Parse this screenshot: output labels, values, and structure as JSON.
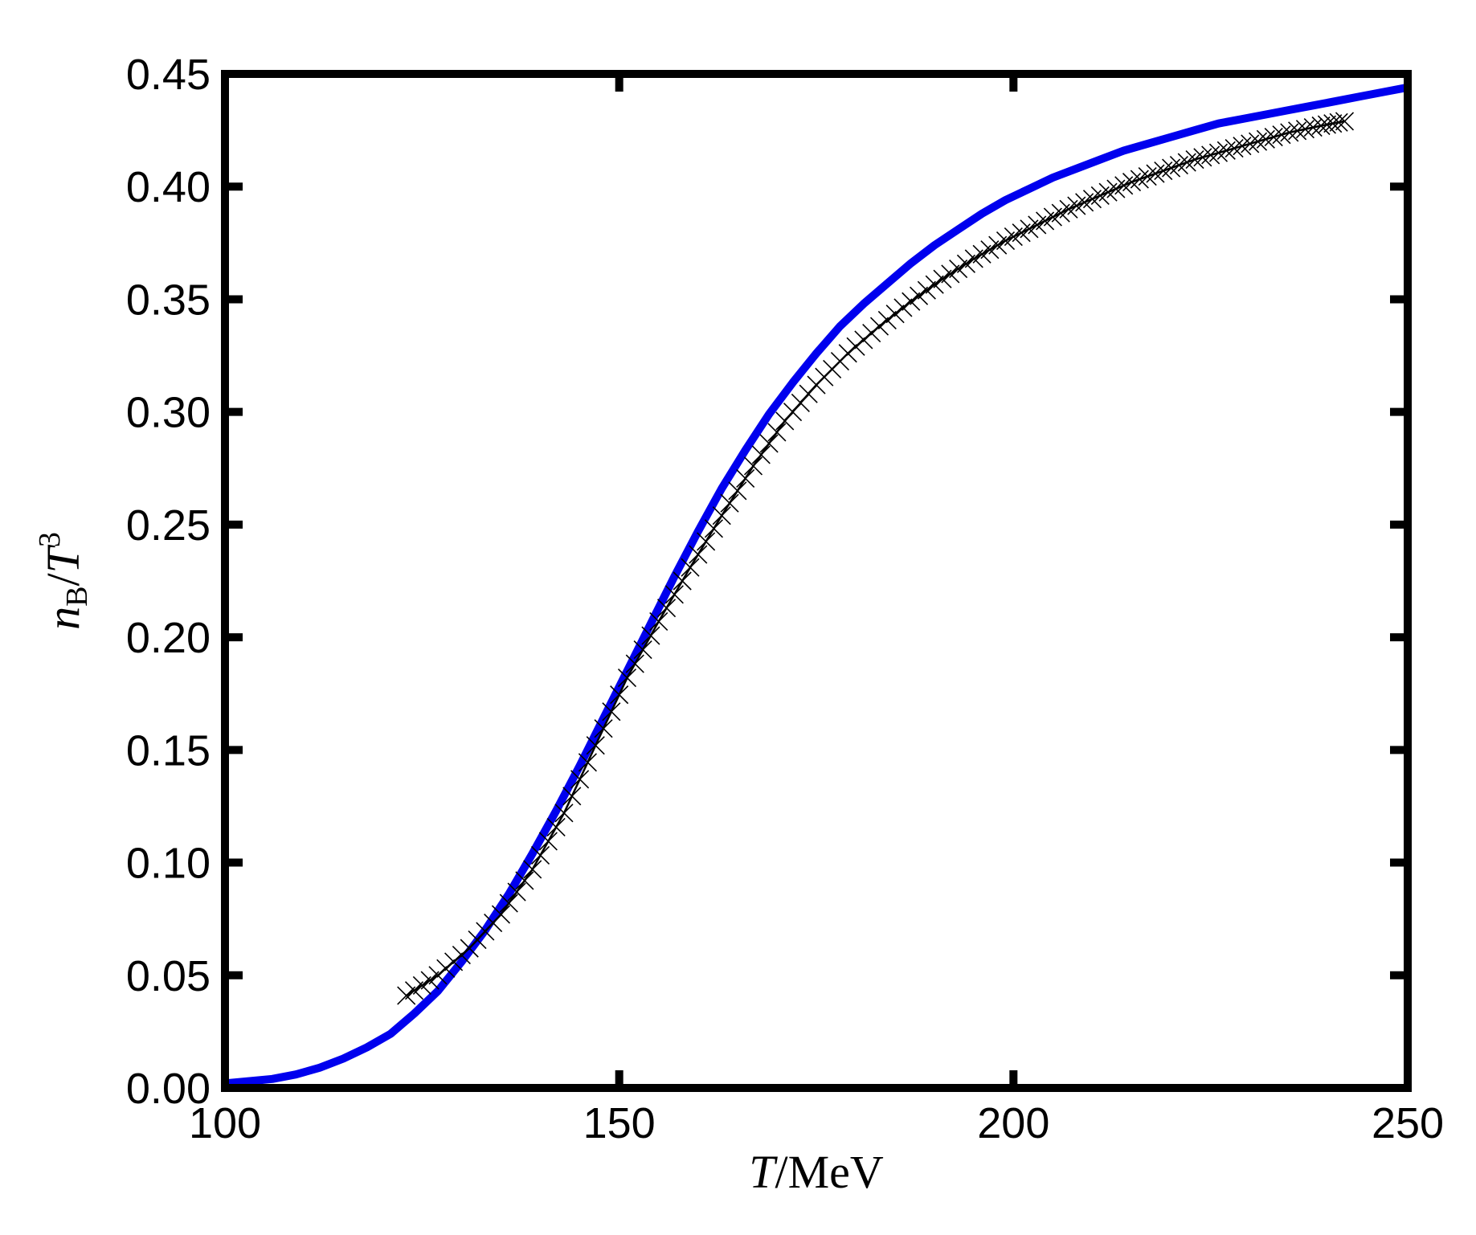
{
  "chart_data": {
    "type": "line",
    "title": "",
    "xlabel": "T/MeV",
    "ylabel": "n_B/T^3",
    "xlabel_parts": {
      "var": "T",
      "rest": "/MeV"
    },
    "ylabel_parts": {
      "var": "n",
      "sub": "B",
      "slash": "/",
      "var2": "T",
      "sup": "3"
    },
    "xlim": [
      100,
      250
    ],
    "ylim": [
      0,
      0.45
    ],
    "xticks": [
      100,
      150,
      200,
      250
    ],
    "xtick_labels": [
      "100",
      "150",
      "200",
      "250"
    ],
    "yticks": [
      0,
      0.05,
      0.1,
      0.15,
      0.2,
      0.25,
      0.3,
      0.35,
      0.4,
      0.45
    ],
    "ytick_labels": [
      "0.00",
      "0.05",
      "0.10",
      "0.15",
      "0.20",
      "0.25",
      "0.30",
      "0.35",
      "0.40",
      "0.45"
    ],
    "grid": false,
    "series": [
      {
        "color": "#0000ee",
        "style": "solid",
        "x": [
          100,
          103,
          106,
          109,
          112,
          115,
          118,
          121,
          124,
          127,
          130,
          133,
          136,
          139,
          142,
          145,
          148,
          151,
          154,
          157,
          160,
          163,
          166,
          169,
          172,
          175,
          178,
          181,
          184,
          187,
          190,
          193,
          196,
          199,
          202,
          205,
          208,
          211,
          214,
          217,
          220,
          223,
          226,
          229,
          232,
          235,
          238,
          241,
          244,
          247,
          250
        ],
        "y": [
          0.002,
          0.003,
          0.004,
          0.006,
          0.009,
          0.013,
          0.018,
          0.024,
          0.033,
          0.043,
          0.056,
          0.07,
          0.086,
          0.104,
          0.123,
          0.143,
          0.164,
          0.185,
          0.206,
          0.227,
          0.247,
          0.266,
          0.283,
          0.299,
          0.313,
          0.326,
          0.338,
          0.348,
          0.357,
          0.366,
          0.374,
          0.381,
          0.388,
          0.394,
          0.399,
          0.404,
          0.408,
          0.412,
          0.416,
          0.419,
          0.422,
          0.425,
          0.428,
          0.43,
          0.432,
          0.434,
          0.436,
          0.438,
          0.44,
          0.442,
          0.444
        ]
      },
      {
        "color": "#000000",
        "style": "solid-with-x-markers",
        "x": [
          123,
          127,
          131,
          135,
          139,
          143,
          147,
          151,
          155,
          159,
          163,
          167,
          171,
          175,
          179,
          183,
          187,
          191,
          195,
          199,
          203,
          207,
          211,
          215,
          219,
          223,
          227,
          231,
          235,
          239,
          242
        ],
        "y": [
          0.041,
          0.05,
          0.062,
          0.077,
          0.097,
          0.122,
          0.152,
          0.182,
          0.207,
          0.231,
          0.254,
          0.276,
          0.296,
          0.312,
          0.326,
          0.338,
          0.349,
          0.359,
          0.368,
          0.376,
          0.383,
          0.39,
          0.396,
          0.402,
          0.407,
          0.412,
          0.416,
          0.42,
          0.424,
          0.427,
          0.429
        ]
      }
    ]
  }
}
